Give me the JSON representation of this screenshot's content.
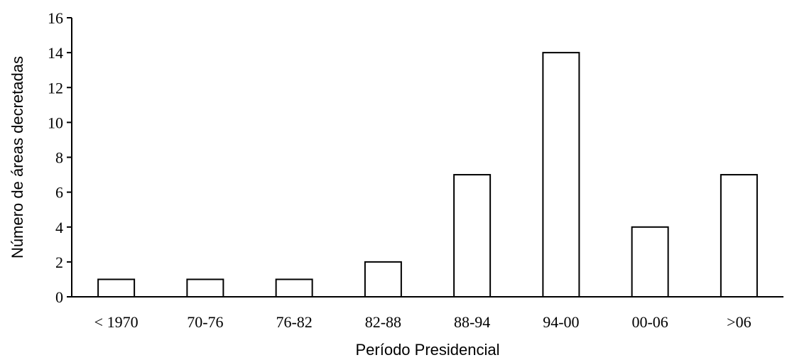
{
  "chart_data": {
    "type": "bar",
    "categories": [
      "< 1970",
      "70-76",
      "76-82",
      "82-88",
      "88-94",
      "94-00",
      "00-06",
      ">06"
    ],
    "values": [
      1,
      1,
      1,
      2,
      7,
      14,
      4,
      7
    ],
    "title": "",
    "xlabel": "Período Presidencial",
    "ylabel": "Número de áreas decretadas",
    "ylim": [
      0,
      16
    ],
    "yticks": [
      0,
      2,
      4,
      6,
      8,
      10,
      12,
      14,
      16
    ],
    "grid": false,
    "legend": "none",
    "colors": {
      "bar_fill": "#ffffff",
      "bar_stroke": "#000000",
      "axis": "#000000"
    }
  }
}
